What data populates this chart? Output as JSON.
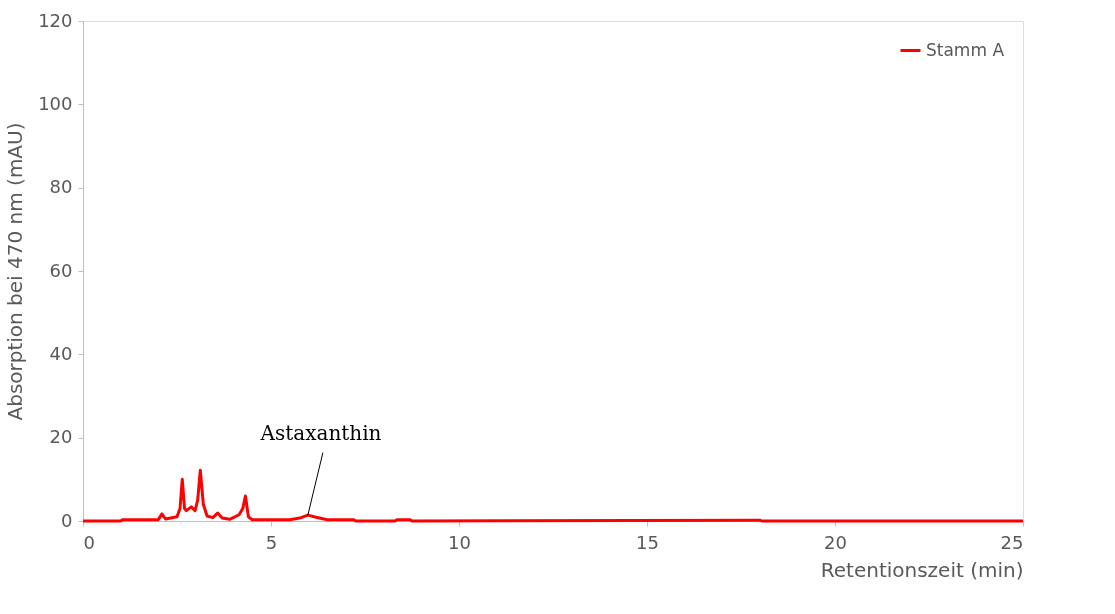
{
  "chart_data": {
    "type": "line",
    "xlabel": "Retentionszeit (min)",
    "ylabel": "Absorption bei 470 nm (mAU)",
    "xlim": [
      0,
      25
    ],
    "xticks": [
      0,
      5,
      10,
      15,
      20,
      25
    ],
    "ylim": [
      0,
      120
    ],
    "yticks": [
      0,
      20,
      40,
      60,
      80,
      100,
      120
    ],
    "grid": false,
    "legend": "top right",
    "marker": "none",
    "line_style": "solid",
    "x": [
      0,
      1.0,
      1.05,
      2.0,
      2.05,
      2.1,
      2.15,
      2.2,
      2.5,
      2.58,
      2.64,
      2.7,
      2.75,
      2.88,
      2.98,
      3.05,
      3.12,
      3.2,
      3.3,
      3.45,
      3.58,
      3.7,
      3.9,
      4.15,
      4.25,
      4.32,
      4.4,
      4.5,
      5.5,
      5.8,
      5.98,
      6.2,
      6.5,
      7.2,
      7.25,
      8.3,
      8.35,
      8.7,
      8.75,
      18.0,
      18.05,
      25
    ],
    "series": [
      {
        "name": "Stamm A",
        "color": "#ff0000",
        "values": [
          0,
          0,
          0.3,
          0.3,
          1.0,
          1.7,
          1.0,
          0.5,
          1.0,
          3.0,
          10.0,
          3.0,
          2.5,
          3.4,
          2.5,
          5.0,
          12.2,
          4.0,
          1.2,
          0.8,
          1.9,
          0.7,
          0.4,
          1.5,
          3.0,
          6.0,
          1.0,
          0.3,
          0.3,
          0.8,
          1.4,
          0.9,
          0.3,
          0.3,
          0,
          0,
          0.3,
          0.3,
          0,
          0.2,
          0,
          0
        ]
      }
    ],
    "annotations": [
      {
        "text": "Astaxanthin",
        "x": 5.98,
        "y": 1.4
      }
    ]
  }
}
